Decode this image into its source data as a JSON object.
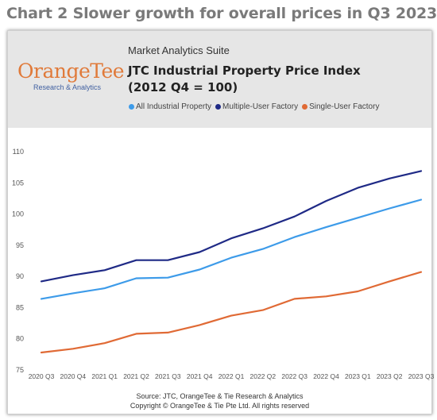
{
  "page_title": "Chart 2 Slower growth for overall prices in Q3 2023",
  "header": {
    "logo_text": "OrangeTee",
    "logo_subtitle": "Research & Analytics",
    "suite": "Market Analytics Suite",
    "title_line1": "JTC Industrial Property Price Index",
    "title_line2": "(2012 Q4 = 100)"
  },
  "colors": {
    "all": "#3d9be9",
    "multi": "#1f2a86",
    "single": "#e06a35"
  },
  "chart_data": {
    "type": "line",
    "categories": [
      "2020 Q3",
      "2020 Q4",
      "2021 Q1",
      "2021 Q2",
      "2021 Q3",
      "2021 Q4",
      "2022 Q1",
      "2022 Q2",
      "2022 Q3",
      "2022 Q4",
      "2023 Q1",
      "2023 Q2",
      "2023 Q3"
    ],
    "series": [
      {
        "name": "All Industrial Property",
        "color": "#3d9be9",
        "values": [
          86.4,
          87.3,
          88.1,
          89.7,
          89.8,
          91.1,
          93.0,
          94.4,
          96.3,
          97.9,
          99.4,
          100.9,
          102.3
        ]
      },
      {
        "name": "Multiple-User Factory",
        "color": "#1f2a86",
        "values": [
          89.2,
          90.2,
          91.0,
          92.6,
          92.6,
          93.9,
          96.1,
          97.7,
          99.6,
          102.1,
          104.2,
          105.7,
          106.9
        ]
      },
      {
        "name": "Single-User Factory",
        "color": "#e06a35",
        "values": [
          77.8,
          78.4,
          79.3,
          80.8,
          81.0,
          82.2,
          83.7,
          84.6,
          86.4,
          86.8,
          87.6,
          89.2,
          90.7
        ]
      }
    ],
    "ylim": [
      75,
      110
    ],
    "yticks": [
      75,
      80,
      85,
      90,
      95,
      100,
      105,
      110
    ],
    "grid": false,
    "legend": "top-left"
  },
  "footer": {
    "source": "Source: JTC, OrangeTee & Tie Research & Analytics",
    "copyright": "Copyright © OrangeTee & Tie Pte Ltd. All rights reserved"
  }
}
